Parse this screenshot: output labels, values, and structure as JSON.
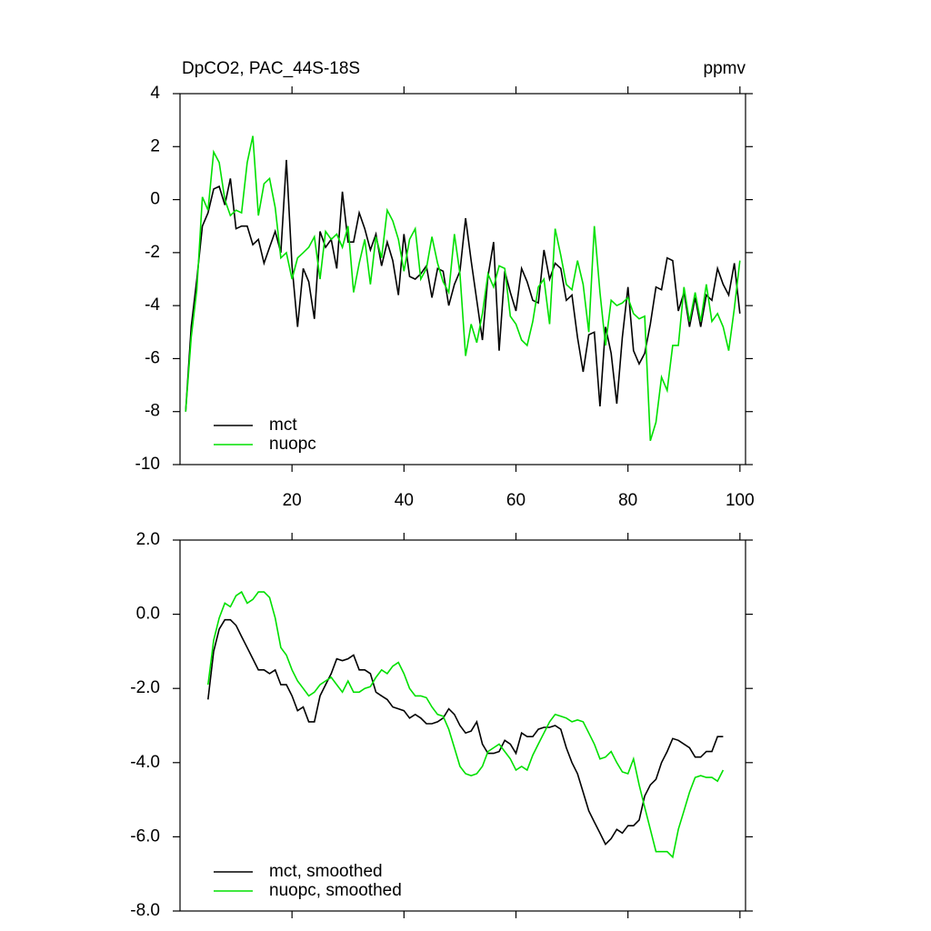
{
  "chart_data": [
    {
      "type": "line",
      "title": "DpCO2, PAC_44S-18S",
      "units": "ppmv",
      "legend": "lower left",
      "x": [
        1,
        2,
        3,
        4,
        5,
        6,
        7,
        8,
        9,
        10,
        11,
        12,
        13,
        14,
        15,
        16,
        17,
        18,
        19,
        20,
        21,
        22,
        23,
        24,
        25,
        26,
        27,
        28,
        29,
        30,
        31,
        32,
        33,
        34,
        35,
        36,
        37,
        38,
        39,
        40,
        41,
        42,
        43,
        44,
        45,
        46,
        47,
        48,
        49,
        50,
        51,
        52,
        53,
        54,
        55,
        56,
        57,
        58,
        59,
        60,
        61,
        62,
        63,
        64,
        65,
        66,
        67,
        68,
        69,
        70,
        71,
        72,
        73,
        74,
        75,
        76,
        77,
        78,
        79,
        80,
        81,
        82,
        83,
        84,
        85,
        86,
        87,
        88,
        89,
        90,
        91,
        92,
        93,
        94,
        95,
        96,
        97,
        98,
        99,
        100
      ],
      "series": [
        {
          "name": "mct",
          "color": "#000000",
          "values": [
            -8,
            -4.8,
            -3,
            -1,
            -0.5,
            0.4,
            0.5,
            -0.2,
            0.8,
            -1.1,
            -1,
            -1,
            -1.7,
            -1.5,
            -2.4,
            -1.8,
            -1.2,
            -2,
            1.5,
            -2.5,
            -4.8,
            -2.6,
            -3.1,
            -4.5,
            -1.2,
            -1.8,
            -1.5,
            -2.6,
            0.3,
            -1.6,
            -1.6,
            -0.5,
            -1.1,
            -1.9,
            -1.3,
            -2.5,
            -1.6,
            -2.3,
            -3.6,
            -1.3,
            -2.9,
            -3,
            -2.8,
            -2.5,
            -3.7,
            -2.6,
            -2.7,
            -4,
            -3.2,
            -2.7,
            -0.7,
            -2.3,
            -3.8,
            -5.3,
            -2.9,
            -1.6,
            -5.7,
            -2.7,
            -3.5,
            -4.2,
            -2.6,
            -3.1,
            -3.8,
            -3.9,
            -1.9,
            -3,
            -2.4,
            -2.6,
            -3.8,
            -3.6,
            -5.2,
            -6.5,
            -5.1,
            -5,
            -7.8,
            -4.8,
            -5.8,
            -7.7,
            -5.2,
            -3.3,
            -5.7,
            -6.2,
            -5.8,
            -4.7,
            -3.3,
            -3.4,
            -2.2,
            -2.3,
            -4.2,
            -3.5,
            -4.8,
            -3.7,
            -4.8,
            -3.6,
            -3.8,
            -2.6,
            -3.2,
            -3.6,
            -2.4,
            -4.3
          ]
        },
        {
          "name": "nuopc",
          "color": "#00e000",
          "values": [
            -8,
            -5.2,
            -3.4,
            0.1,
            -0.4,
            1.8,
            1.4,
            0,
            -0.6,
            -0.4,
            -0.5,
            1.4,
            2.4,
            -0.6,
            0.6,
            0.8,
            -0.3,
            -2.2,
            -2,
            -3,
            -2.2,
            -2,
            -1.8,
            -1.4,
            -3,
            -1.2,
            -1.5,
            -1.3,
            -1.8,
            -1,
            -3.5,
            -2.4,
            -1.5,
            -3.2,
            -1.4,
            -2.2,
            -0.4,
            -0.8,
            -1.5,
            -2.7,
            -1.5,
            -1.1,
            -3,
            -2.6,
            -1.4,
            -2.4,
            -3.1,
            -3.5,
            -1.3,
            -2.8,
            -5.9,
            -4.7,
            -5.4,
            -4.3,
            -2.8,
            -3.3,
            -2.5,
            -2.6,
            -4.4,
            -4.7,
            -5.3,
            -5.5,
            -4.6,
            -3.3,
            -3,
            -4.7,
            -1.1,
            -2.1,
            -3.2,
            -3.4,
            -2.3,
            -3.2,
            -5,
            -1,
            -3.5,
            -5.5,
            -3.8,
            -4,
            -3.9,
            -3.7,
            -4.3,
            -4.5,
            -4.4,
            -9.1,
            -8.4,
            -6.7,
            -7.2,
            -5.5,
            -5.5,
            -3.3,
            -4.6,
            -3.5,
            -4.6,
            -3.2,
            -4.6,
            -4.3,
            -4.8,
            -5.7,
            -4.1,
            -2.3
          ]
        }
      ],
      "xlim": [
        0,
        101
      ],
      "xticks": [
        20,
        40,
        60,
        80,
        100
      ],
      "ylim": [
        -10,
        4
      ],
      "yticks": [
        4,
        2,
        0,
        -2,
        -4,
        -6,
        -8,
        -10
      ]
    },
    {
      "type": "line",
      "legend": "lower left",
      "x": [
        5,
        6,
        7,
        8,
        9,
        10,
        11,
        12,
        13,
        14,
        15,
        16,
        17,
        18,
        19,
        20,
        21,
        22,
        23,
        24,
        25,
        26,
        27,
        28,
        29,
        30,
        31,
        32,
        33,
        34,
        35,
        36,
        37,
        38,
        39,
        40,
        41,
        42,
        43,
        44,
        45,
        46,
        47,
        48,
        49,
        50,
        51,
        52,
        53,
        54,
        55,
        56,
        57,
        58,
        59,
        60,
        61,
        62,
        63,
        64,
        65,
        66,
        67,
        68,
        69,
        70,
        71,
        72,
        73,
        74,
        75,
        76,
        77,
        78,
        79,
        80,
        81,
        82,
        83,
        84,
        85,
        86,
        87,
        88,
        89,
        90,
        91,
        92,
        93,
        94,
        95,
        96,
        97
      ],
      "series": [
        {
          "name": "mct, smoothed",
          "color": "#000000",
          "values": [
            -2.3,
            -1.0,
            -0.4,
            -0.15,
            -0.15,
            -0.3,
            -0.6,
            -0.9,
            -1.2,
            -1.5,
            -1.5,
            -1.6,
            -1.5,
            -1.9,
            -1.9,
            -2.2,
            -2.6,
            -2.5,
            -2.9,
            -2.9,
            -2.2,
            -1.9,
            -1.6,
            -1.2,
            -1.25,
            -1.2,
            -1.1,
            -1.5,
            -1.5,
            -1.6,
            -2.1,
            -2.2,
            -2.3,
            -2.5,
            -2.55,
            -2.6,
            -2.8,
            -2.7,
            -2.8,
            -2.95,
            -2.95,
            -2.9,
            -2.8,
            -2.55,
            -2.7,
            -3.0,
            -3.2,
            -3.15,
            -2.9,
            -3.5,
            -3.75,
            -3.75,
            -3.7,
            -3.4,
            -3.5,
            -3.75,
            -3.2,
            -3.3,
            -3.3,
            -3.1,
            -3.05,
            -3.05,
            -3.0,
            -3.1,
            -3.6,
            -4.0,
            -4.3,
            -4.8,
            -5.3,
            -5.6,
            -5.9,
            -6.2,
            -6.05,
            -5.8,
            -5.9,
            -5.7,
            -5.7,
            -5.55,
            -4.9,
            -4.6,
            -4.45,
            -4.0,
            -3.7,
            -3.35,
            -3.4,
            -3.5,
            -3.6,
            -3.85,
            -3.85,
            -3.7,
            -3.7,
            -3.3,
            -3.3
          ]
        },
        {
          "name": "nuopc, smoothed",
          "color": "#00e000",
          "values": [
            -1.9,
            -0.7,
            -0.1,
            0.3,
            0.2,
            0.5,
            0.6,
            0.3,
            0.4,
            0.6,
            0.6,
            0.45,
            -0.1,
            -0.9,
            -1.1,
            -1.5,
            -1.8,
            -2.0,
            -2.2,
            -2.1,
            -1.9,
            -1.8,
            -1.7,
            -1.9,
            -2.1,
            -1.8,
            -2.1,
            -2.1,
            -2.0,
            -1.95,
            -1.7,
            -1.5,
            -1.6,
            -1.4,
            -1.3,
            -1.6,
            -2.0,
            -2.2,
            -2.2,
            -2.25,
            -2.5,
            -2.7,
            -2.75,
            -3.1,
            -3.6,
            -4.1,
            -4.3,
            -4.35,
            -4.3,
            -4.1,
            -3.7,
            -3.6,
            -3.5,
            -3.7,
            -3.9,
            -4.2,
            -4.1,
            -4.2,
            -3.8,
            -3.5,
            -3.2,
            -2.9,
            -2.7,
            -2.75,
            -2.8,
            -2.9,
            -2.85,
            -2.9,
            -3.2,
            -3.5,
            -3.9,
            -3.85,
            -3.7,
            -4.0,
            -4.25,
            -4.3,
            -3.9,
            -4.6,
            -5.2,
            -5.8,
            -6.4,
            -6.4,
            -6.4,
            -6.55,
            -5.8,
            -5.3,
            -4.8,
            -4.4,
            -4.35,
            -4.4,
            -4.4,
            -4.5,
            -4.2
          ]
        }
      ],
      "xlim": [
        0,
        101
      ],
      "xticks": [
        20,
        40,
        60,
        80,
        100
      ],
      "ylim": [
        -8,
        2
      ],
      "yticks": [
        {
          "value": 2,
          "label": "2.0"
        },
        {
          "value": 0,
          "label": "0.0"
        },
        {
          "value": -2,
          "label": "-2.0"
        },
        {
          "value": -4,
          "label": "-4.0"
        },
        {
          "value": -6,
          "label": "-6.0"
        },
        {
          "value": -8,
          "label": "-8.0"
        }
      ]
    }
  ]
}
